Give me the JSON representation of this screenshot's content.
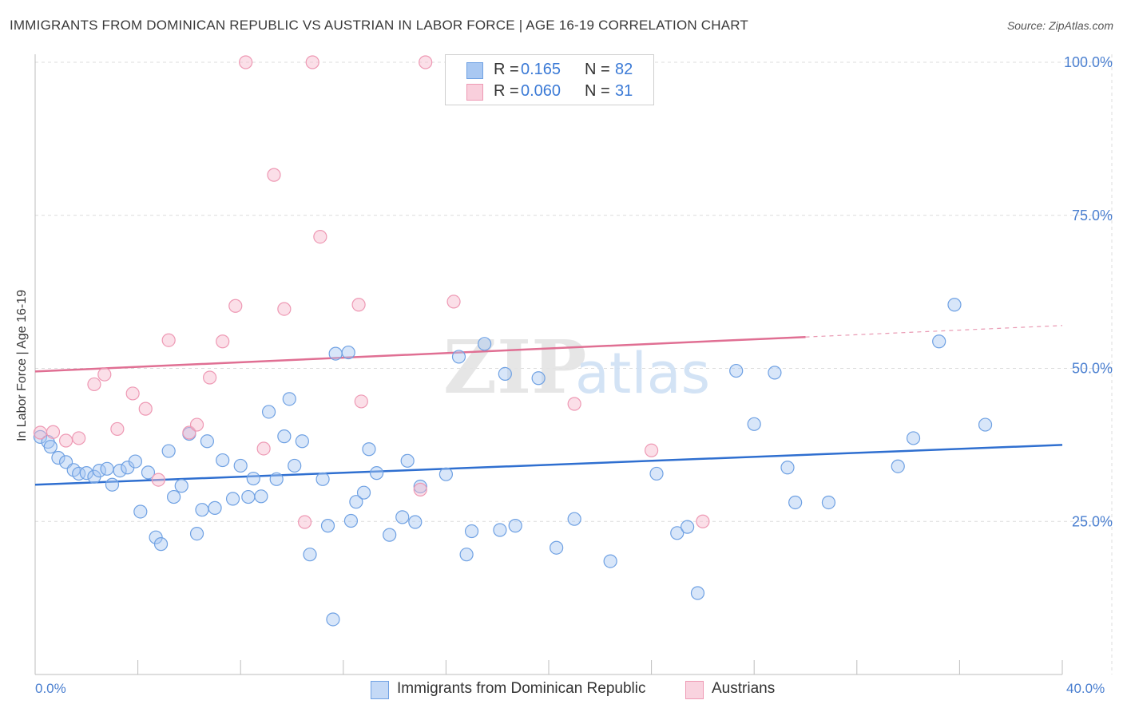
{
  "header": {
    "title": "IMMIGRANTS FROM DOMINICAN REPUBLIC VS AUSTRIAN IN LABOR FORCE | AGE 16-19 CORRELATION CHART",
    "source": "Source: ZipAtlas.com"
  },
  "watermark": {
    "zip": "ZIP",
    "atlas": "atlas"
  },
  "legend": {
    "series1": {
      "r_label": "R =",
      "r_value": "0.165",
      "n_label": "N =",
      "n_value": "82",
      "color": "#a9c8f2"
    },
    "series2": {
      "r_label": "R =",
      "r_value": "0.060",
      "n_label": "N =",
      "n_value": "31",
      "color": "#f6b8cb"
    }
  },
  "bottom_legend": {
    "series1_label": "Immigrants from Dominican Republic",
    "series2_label": "Austrians"
  },
  "chart_data": {
    "type": "scatter",
    "title": "IMMIGRANTS FROM DOMINICAN REPUBLIC VS AUSTRIAN IN LABOR FORCE | AGE 16-19 CORRELATION CHART",
    "xlabel": "",
    "ylabel": "In Labor Force | Age 16-19",
    "xlim": [
      0,
      40
    ],
    "ylim": [
      0,
      100
    ],
    "x_tick_labels": [
      "0.0%",
      "40.0%"
    ],
    "y_ticks": [
      25,
      50,
      75,
      100
    ],
    "y_tick_labels": [
      "25.0%",
      "50.0%",
      "75.0%",
      "100.0%"
    ],
    "grid": "horizontal dashed",
    "series": [
      {
        "name": "Immigrants from Dominican Republic",
        "color": "#6fa1e3",
        "fill": "#a9c8f2",
        "trend": {
          "x": [
            0,
            40
          ],
          "y": [
            31.0,
            37.5
          ],
          "color": "#2f6fd0",
          "dashed_from": null
        },
        "points": [
          [
            0.2,
            38.8
          ],
          [
            0.5,
            38.0
          ],
          [
            0.6,
            37.2
          ],
          [
            0.9,
            35.4
          ],
          [
            1.2,
            34.7
          ],
          [
            1.5,
            33.4
          ],
          [
            1.7,
            32.8
          ],
          [
            2.0,
            32.9
          ],
          [
            2.3,
            32.3
          ],
          [
            2.5,
            33.3
          ],
          [
            2.8,
            33.6
          ],
          [
            3.0,
            31.0
          ],
          [
            3.3,
            33.3
          ],
          [
            3.6,
            33.8
          ],
          [
            3.9,
            34.8
          ],
          [
            4.1,
            26.6
          ],
          [
            4.4,
            33.0
          ],
          [
            4.7,
            22.4
          ],
          [
            4.9,
            21.3
          ],
          [
            5.2,
            36.5
          ],
          [
            5.4,
            29.0
          ],
          [
            5.7,
            30.8
          ],
          [
            6.0,
            39.3
          ],
          [
            6.3,
            23.0
          ],
          [
            6.5,
            26.9
          ],
          [
            6.7,
            38.1
          ],
          [
            7.0,
            27.2
          ],
          [
            7.3,
            35.0
          ],
          [
            7.7,
            28.7
          ],
          [
            8.0,
            34.1
          ],
          [
            8.3,
            29.0
          ],
          [
            8.5,
            32.0
          ],
          [
            8.8,
            29.1
          ],
          [
            9.1,
            42.9
          ],
          [
            9.4,
            31.9
          ],
          [
            9.7,
            38.9
          ],
          [
            9.9,
            45.0
          ],
          [
            10.1,
            34.1
          ],
          [
            10.4,
            38.1
          ],
          [
            10.7,
            19.6
          ],
          [
            11.2,
            31.9
          ],
          [
            11.4,
            24.3
          ],
          [
            11.7,
            52.4
          ],
          [
            11.6,
            9.0
          ],
          [
            12.2,
            52.6
          ],
          [
            12.3,
            25.1
          ],
          [
            12.5,
            28.2
          ],
          [
            12.8,
            29.7
          ],
          [
            13.0,
            36.8
          ],
          [
            13.3,
            32.9
          ],
          [
            13.8,
            22.8
          ],
          [
            14.3,
            25.7
          ],
          [
            14.5,
            34.9
          ],
          [
            14.8,
            24.9
          ],
          [
            15.0,
            30.7
          ],
          [
            16.0,
            32.7
          ],
          [
            16.5,
            51.9
          ],
          [
            16.8,
            19.6
          ],
          [
            17.0,
            23.4
          ],
          [
            17.5,
            54.0
          ],
          [
            18.1,
            23.6
          ],
          [
            18.3,
            49.1
          ],
          [
            18.7,
            24.3
          ],
          [
            19.6,
            48.4
          ],
          [
            20.3,
            20.7
          ],
          [
            21.0,
            25.4
          ],
          [
            22.4,
            18.5
          ],
          [
            24.2,
            32.8
          ],
          [
            25.0,
            23.1
          ],
          [
            25.4,
            24.1
          ],
          [
            25.8,
            13.3
          ],
          [
            27.3,
            49.6
          ],
          [
            28.0,
            40.9
          ],
          [
            28.8,
            49.3
          ],
          [
            29.3,
            33.8
          ],
          [
            29.6,
            28.1
          ],
          [
            30.9,
            28.1
          ],
          [
            33.6,
            34.0
          ],
          [
            34.2,
            38.6
          ],
          [
            35.2,
            54.4
          ],
          [
            35.8,
            60.4
          ],
          [
            37.0,
            40.8
          ]
        ]
      },
      {
        "name": "Austrians",
        "color": "#ee99b4",
        "fill": "#f6b8cb",
        "trend": {
          "x": [
            0,
            40
          ],
          "y": [
            49.5,
            57.0
          ],
          "color": "#e06f93",
          "dashed_from": 30
        },
        "points": [
          [
            0.2,
            39.5
          ],
          [
            0.7,
            39.6
          ],
          [
            1.2,
            38.2
          ],
          [
            1.7,
            38.6
          ],
          [
            2.3,
            47.4
          ],
          [
            2.7,
            49.0
          ],
          [
            3.2,
            40.1
          ],
          [
            3.8,
            45.9
          ],
          [
            4.3,
            43.4
          ],
          [
            4.8,
            31.8
          ],
          [
            5.2,
            54.6
          ],
          [
            6.0,
            39.5
          ],
          [
            6.3,
            40.8
          ],
          [
            6.8,
            48.5
          ],
          [
            7.3,
            54.4
          ],
          [
            7.8,
            60.2
          ],
          [
            8.2,
            100.0
          ],
          [
            8.9,
            36.9
          ],
          [
            9.3,
            81.6
          ],
          [
            9.7,
            59.7
          ],
          [
            10.5,
            24.9
          ],
          [
            10.8,
            100.0
          ],
          [
            11.1,
            71.5
          ],
          [
            12.6,
            60.4
          ],
          [
            12.7,
            44.6
          ],
          [
            15.0,
            30.2
          ],
          [
            15.2,
            100.0
          ],
          [
            16.3,
            60.9
          ],
          [
            21.0,
            44.2
          ],
          [
            24.0,
            36.6
          ],
          [
            26.0,
            25.0
          ]
        ]
      }
    ]
  }
}
